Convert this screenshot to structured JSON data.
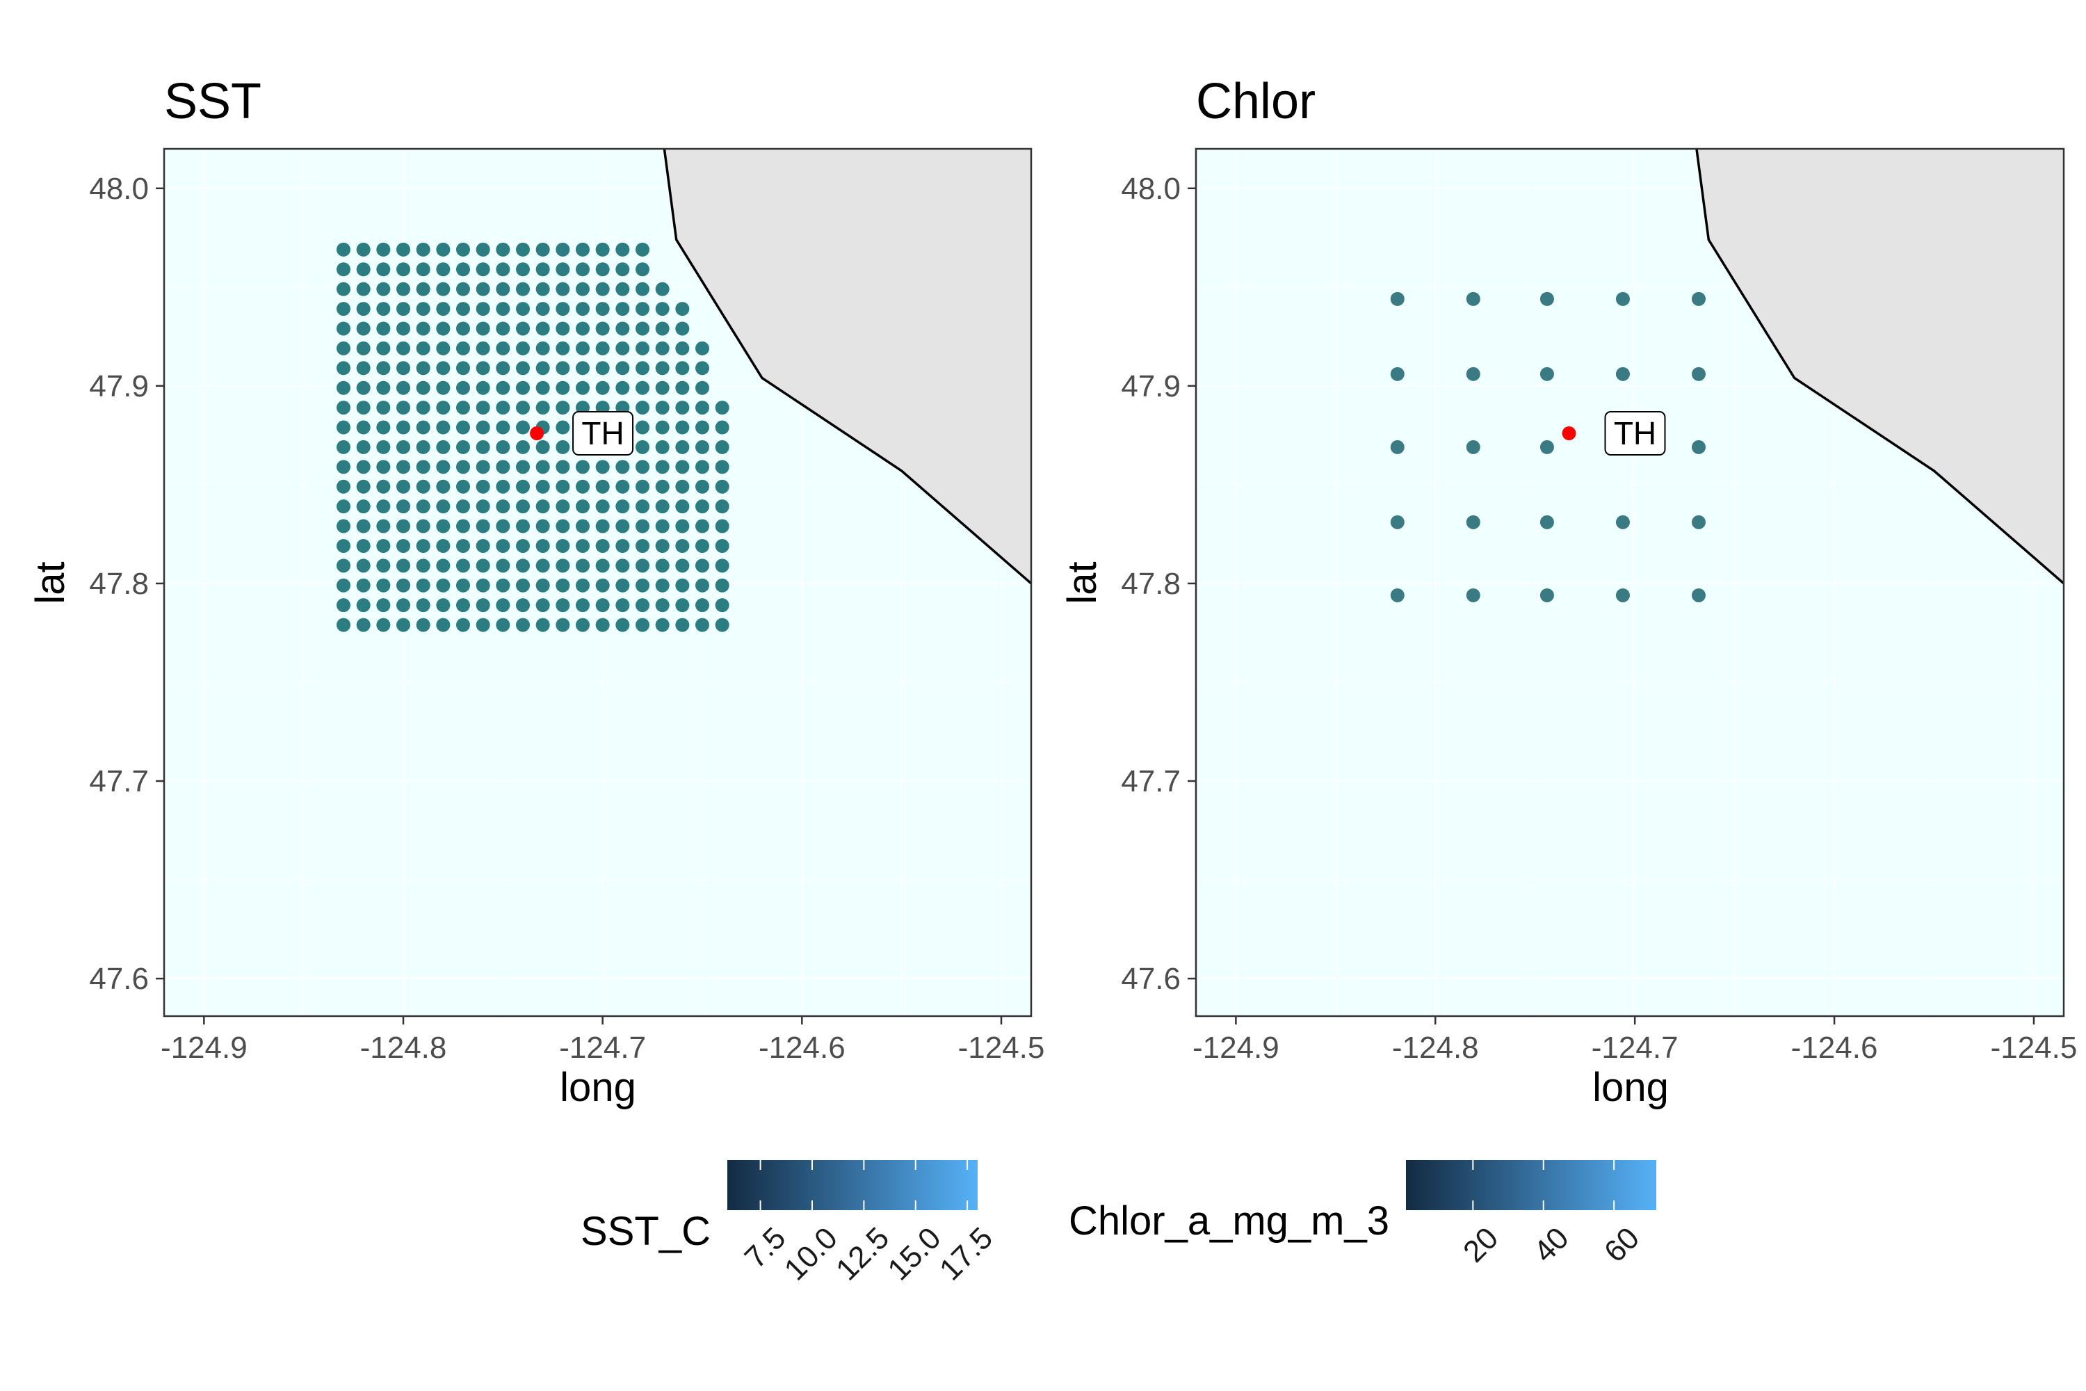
{
  "chart_data": [
    {
      "type": "scatter",
      "title": "SST",
      "xlabel": "long",
      "ylabel": "lat",
      "xlim": [
        -124.92,
        -124.485
      ],
      "ylim": [
        47.581,
        48.02
      ],
      "x_ticks": [
        "-124.9",
        "-124.8",
        "-124.7",
        "-124.6",
        "-124.5"
      ],
      "y_ticks": [
        "47.6",
        "47.7",
        "47.8",
        "47.9",
        "48.0"
      ],
      "x_tick_values": [
        -124.9,
        -124.8,
        -124.7,
        -124.6,
        -124.5
      ],
      "y_tick_values": [
        47.6,
        47.7,
        47.8,
        47.9,
        48.0
      ],
      "grid": true,
      "grid_spacing_deg": 0.01,
      "grid_lon_range": [
        -124.83,
        -124.636
      ],
      "grid_lat_range": [
        47.779,
        47.971
      ],
      "grid_row_lon_max": [
        {
          "lat_min": 47.779,
          "lat_max": 47.898,
          "lon_max": -124.636
        },
        {
          "lat_min": 47.899,
          "lat_max": 47.928,
          "lon_max": -124.646
        },
        {
          "lat_min": 47.929,
          "lat_max": 47.948,
          "lon_max": -124.656
        },
        {
          "lat_min": 47.949,
          "lat_max": 47.958,
          "lon_max": -124.666
        },
        {
          "lat_min": 47.959,
          "lat_max": 47.971,
          "lon_max": -124.676
        }
      ],
      "station": {
        "label": "TH",
        "long": -124.733,
        "lat": 47.876
      },
      "coastline": [
        [
          -124.673,
          48.05
        ],
        [
          -124.663,
          47.974
        ],
        [
          -124.62,
          47.904
        ],
        [
          -124.55,
          47.857
        ],
        [
          -124.485,
          47.8
        ]
      ],
      "land_color": "#e4e4e4",
      "sea_color": "#f0ffff",
      "point_color": "#2c7d82",
      "station_color": "#ff0000"
    },
    {
      "type": "scatter",
      "title": "Chlor",
      "xlabel": "long",
      "ylabel": "lat",
      "xlim": [
        -124.92,
        -124.485
      ],
      "ylim": [
        47.581,
        48.02
      ],
      "x_ticks": [
        "-124.9",
        "-124.8",
        "-124.7",
        "-124.6",
        "-124.5"
      ],
      "y_ticks": [
        "47.6",
        "47.7",
        "47.8",
        "47.9",
        "48.0"
      ],
      "x_tick_values": [
        -124.9,
        -124.8,
        -124.7,
        -124.6,
        -124.5
      ],
      "y_tick_values": [
        47.6,
        47.7,
        47.8,
        47.9,
        48.0
      ],
      "grid": true,
      "grid_lon": [
        -124.819,
        -124.781,
        -124.744,
        -124.706,
        -124.668
      ],
      "grid_lat": [
        47.944,
        47.906,
        47.869,
        47.831,
        47.794
      ],
      "station": {
        "label": "TH",
        "long": -124.733,
        "lat": 47.876
      },
      "coastline": [
        [
          -124.673,
          48.05
        ],
        [
          -124.663,
          47.974
        ],
        [
          -124.62,
          47.904
        ],
        [
          -124.55,
          47.857
        ],
        [
          -124.485,
          47.8
        ]
      ],
      "land_color": "#e4e4e4",
      "sea_color": "#f0ffff",
      "point_color": "#3a7a82",
      "station_color": "#ff0000"
    }
  ],
  "legends": [
    {
      "title": "SST_C",
      "ticks": [
        "7.5",
        "10.0",
        "12.5",
        "15.0",
        "17.5"
      ],
      "tick_values": [
        7.5,
        10.0,
        12.5,
        15.0,
        17.5
      ],
      "range": [
        5.9,
        18.0
      ],
      "color_low": "#132b43",
      "color_high": "#56b1f7"
    },
    {
      "title": "Chlor_a_mg_m_3",
      "ticks": [
        "20",
        "40",
        "60"
      ],
      "tick_values": [
        20,
        40,
        60
      ],
      "range": [
        1.0,
        72.0
      ],
      "color_low": "#132b43",
      "color_high": "#56b1f7"
    }
  ]
}
